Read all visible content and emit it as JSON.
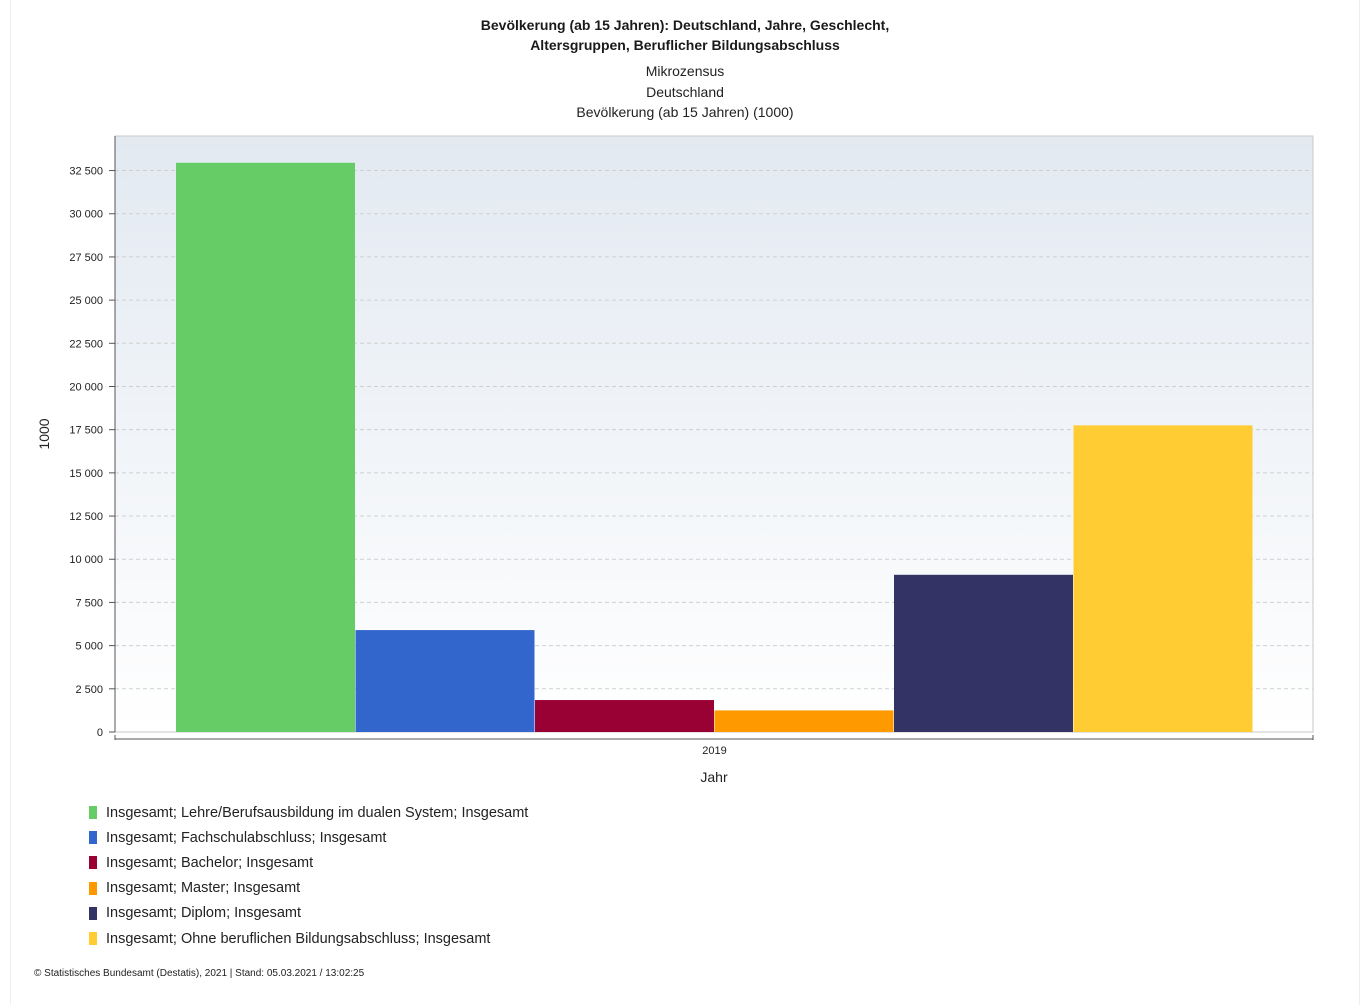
{
  "chart_data": {
    "type": "bar",
    "title_line1": "Bevölkerung (ab 15 Jahren): Deutschland, Jahre, Geschlecht,",
    "title_line2": "Altersgruppen, Beruflicher Bildungsabschluss",
    "subtitle_line1": "Mikrozensus",
    "subtitle_line2": "Deutschland",
    "subtitle_line3": "Bevölkerung (ab 15 Jahren) (1000)",
    "xlabel": "Jahr",
    "ylabel": "1000",
    "categories": [
      "2019"
    ],
    "ylim": [
      0,
      34500
    ],
    "yticks": [
      0,
      2500,
      5000,
      7500,
      10000,
      12500,
      15000,
      17500,
      20000,
      22500,
      25000,
      27500,
      30000,
      32500
    ],
    "ytick_labels": [
      "0",
      "2 500",
      "5 000",
      "7 500",
      "10 000",
      "12 500",
      "15 000",
      "17 500",
      "20 000",
      "22 500",
      "25 000",
      "27 500",
      "30 000",
      "32 500"
    ],
    "grid": true,
    "legend_position": "bottom-left",
    "series": [
      {
        "name": "Insgesamt; Lehre/Berufsausbildung im dualen System; Insgesamt",
        "values": [
          32950
        ],
        "color": "#66cc66"
      },
      {
        "name": "Insgesamt; Fachschulabschluss; Insgesamt",
        "values": [
          5900
        ],
        "color": "#3366cc"
      },
      {
        "name": "Insgesamt; Bachelor; Insgesamt",
        "values": [
          1850
        ],
        "color": "#990033"
      },
      {
        "name": "Insgesamt; Master; Insgesamt",
        "values": [
          1250
        ],
        "color": "#ff9900"
      },
      {
        "name": "Insgesamt; Diplom; Insgesamt",
        "values": [
          9100
        ],
        "color": "#333366"
      },
      {
        "name": "Insgesamt; Ohne beruflichen Bildungsabschluss; Insgesamt",
        "values": [
          17750
        ],
        "color": "#ffcc33"
      }
    ]
  },
  "footer": "© Statistisches Bundesamt (Destatis), 2021 | Stand: 05.03.2021 / 13:02:25"
}
